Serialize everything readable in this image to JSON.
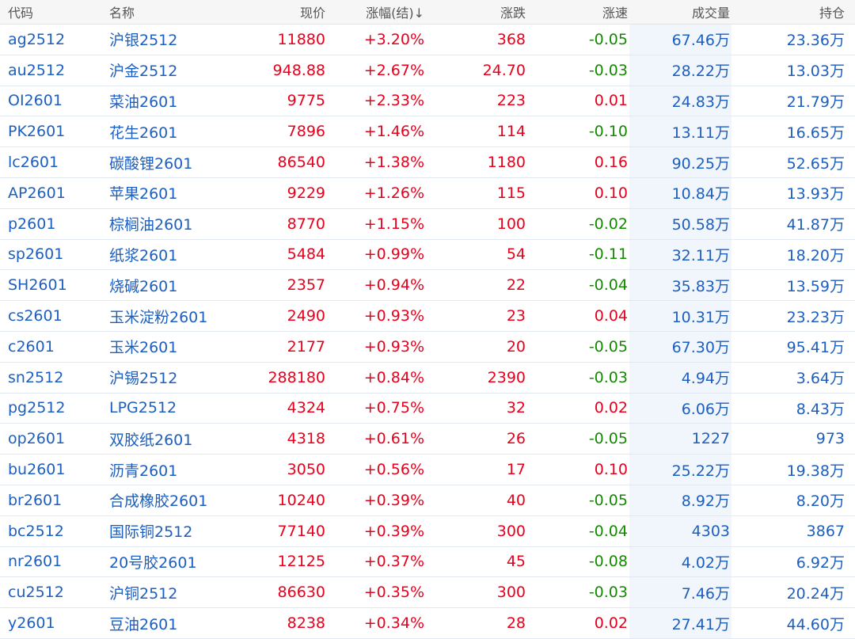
{
  "colors": {
    "up": "#e8001c",
    "down": "#138a00",
    "link": "#1d5fbf"
  },
  "header": {
    "code": "代码",
    "name": "名称",
    "price": "现价",
    "pct": "涨幅(结)↓",
    "change": "涨跌",
    "speed": "涨速",
    "volume": "成交量",
    "oi": "持仓"
  },
  "rows": [
    {
      "code": "ag2512",
      "name": "沪银2512",
      "price": "11880",
      "pct": "+3.20%",
      "change": "368",
      "speed": "-0.05",
      "volume": "67.46万",
      "oi": "23.36万"
    },
    {
      "code": "au2512",
      "name": "沪金2512",
      "price": "948.88",
      "pct": "+2.67%",
      "change": "24.70",
      "speed": "-0.03",
      "volume": "28.22万",
      "oi": "13.03万"
    },
    {
      "code": "OI2601",
      "name": "菜油2601",
      "price": "9775",
      "pct": "+2.33%",
      "change": "223",
      "speed": "0.01",
      "volume": "24.83万",
      "oi": "21.79万"
    },
    {
      "code": "PK2601",
      "name": "花生2601",
      "price": "7896",
      "pct": "+1.46%",
      "change": "114",
      "speed": "-0.10",
      "volume": "13.11万",
      "oi": "16.65万"
    },
    {
      "code": "lc2601",
      "name": "碳酸锂2601",
      "price": "86540",
      "pct": "+1.38%",
      "change": "1180",
      "speed": "0.16",
      "volume": "90.25万",
      "oi": "52.65万"
    },
    {
      "code": "AP2601",
      "name": "苹果2601",
      "price": "9229",
      "pct": "+1.26%",
      "change": "115",
      "speed": "0.10",
      "volume": "10.84万",
      "oi": "13.93万"
    },
    {
      "code": "p2601",
      "name": "棕榈油2601",
      "price": "8770",
      "pct": "+1.15%",
      "change": "100",
      "speed": "-0.02",
      "volume": "50.58万",
      "oi": "41.87万"
    },
    {
      "code": "sp2601",
      "name": "纸浆2601",
      "price": "5484",
      "pct": "+0.99%",
      "change": "54",
      "speed": "-0.11",
      "volume": "32.11万",
      "oi": "18.20万"
    },
    {
      "code": "SH2601",
      "name": "烧碱2601",
      "price": "2357",
      "pct": "+0.94%",
      "change": "22",
      "speed": "-0.04",
      "volume": "35.83万",
      "oi": "13.59万"
    },
    {
      "code": "cs2601",
      "name": "玉米淀粉2601",
      "price": "2490",
      "pct": "+0.93%",
      "change": "23",
      "speed": "0.04",
      "volume": "10.31万",
      "oi": "23.23万"
    },
    {
      "code": "c2601",
      "name": "玉米2601",
      "price": "2177",
      "pct": "+0.93%",
      "change": "20",
      "speed": "-0.05",
      "volume": "67.30万",
      "oi": "95.41万"
    },
    {
      "code": "sn2512",
      "name": "沪锡2512",
      "price": "288180",
      "pct": "+0.84%",
      "change": "2390",
      "speed": "-0.03",
      "volume": "4.94万",
      "oi": "3.64万"
    },
    {
      "code": "pg2512",
      "name": "LPG2512",
      "price": "4324",
      "pct": "+0.75%",
      "change": "32",
      "speed": "0.02",
      "volume": "6.06万",
      "oi": "8.43万"
    },
    {
      "code": "op2601",
      "name": "双胶纸2601",
      "price": "4318",
      "pct": "+0.61%",
      "change": "26",
      "speed": "-0.05",
      "volume": "1227",
      "oi": "973"
    },
    {
      "code": "bu2601",
      "name": "沥青2601",
      "price": "3050",
      "pct": "+0.56%",
      "change": "17",
      "speed": "0.10",
      "volume": "25.22万",
      "oi": "19.38万"
    },
    {
      "code": "br2601",
      "name": "合成橡胶2601",
      "price": "10240",
      "pct": "+0.39%",
      "change": "40",
      "speed": "-0.05",
      "volume": "8.92万",
      "oi": "8.20万"
    },
    {
      "code": "bc2512",
      "name": "国际铜2512",
      "price": "77140",
      "pct": "+0.39%",
      "change": "300",
      "speed": "-0.04",
      "volume": "4303",
      "oi": "3867"
    },
    {
      "code": "nr2601",
      "name": "20号胶2601",
      "price": "12125",
      "pct": "+0.37%",
      "change": "45",
      "speed": "-0.08",
      "volume": "4.02万",
      "oi": "6.92万"
    },
    {
      "code": "cu2512",
      "name": "沪铜2512",
      "price": "86630",
      "pct": "+0.35%",
      "change": "300",
      "speed": "-0.03",
      "volume": "7.46万",
      "oi": "20.24万"
    },
    {
      "code": "y2601",
      "name": "豆油2601",
      "price": "8238",
      "pct": "+0.34%",
      "change": "28",
      "speed": "0.02",
      "volume": "27.41万",
      "oi": "44.60万"
    }
  ]
}
